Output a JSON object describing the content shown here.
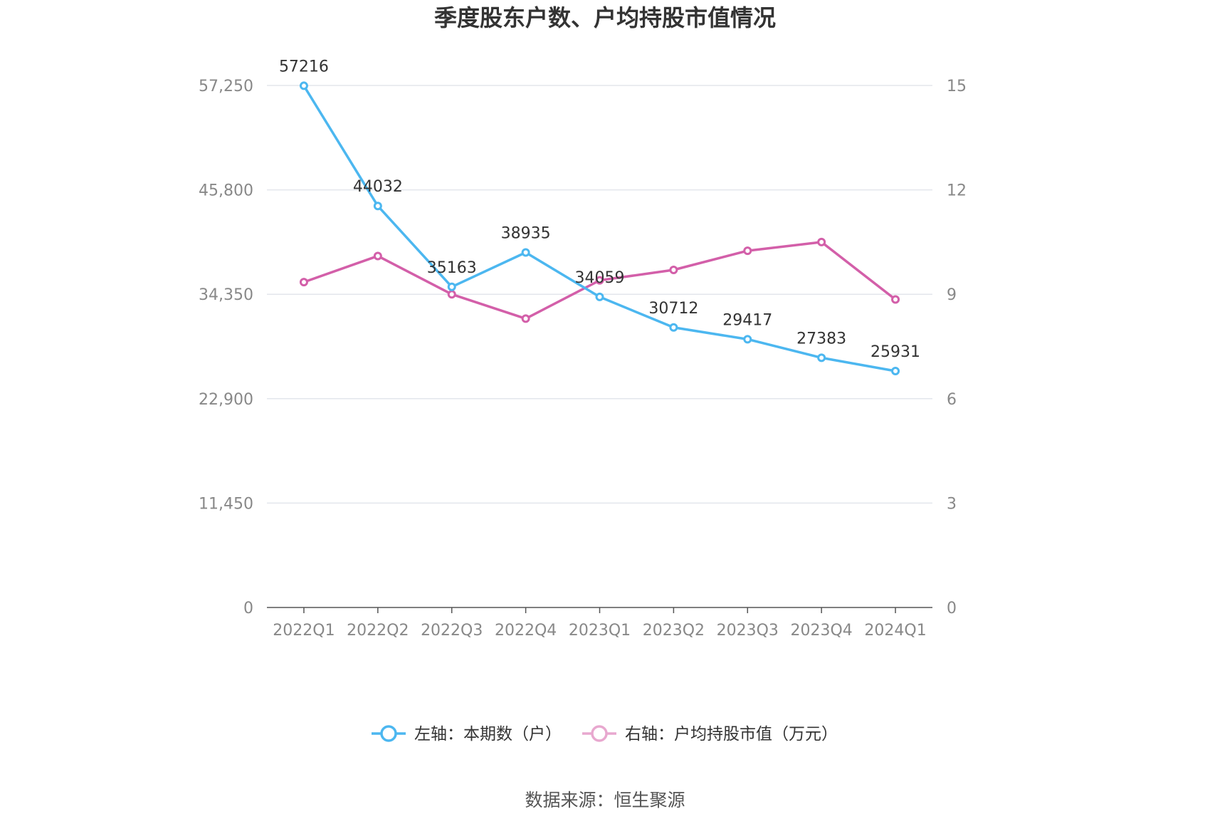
{
  "title": "季度股东户数、户均持股市值情况",
  "source": "数据来源：恒生聚源",
  "colors": {
    "left_series": "#4cb7f0",
    "right_series": "#d35fa9",
    "grid": "#e3e6ec",
    "axis": "#555555"
  },
  "chart_data": {
    "type": "line",
    "title": "季度股东户数、户均持股市值情况",
    "categories": [
      "2022Q1",
      "2022Q2",
      "2022Q3",
      "2022Q4",
      "2023Q1",
      "2023Q2",
      "2023Q3",
      "2023Q4",
      "2024Q1"
    ],
    "y_left": {
      "min": 0,
      "max": 57250,
      "ticks": [
        "0",
        "11,450",
        "22,900",
        "34,350",
        "45,800",
        "57,250"
      ]
    },
    "y_right": {
      "min": 0,
      "max": 15,
      "ticks": [
        "0",
        "3",
        "6",
        "9",
        "12",
        "15"
      ]
    },
    "grid": true,
    "legend_position": "bottom",
    "series": [
      {
        "name": "左轴：本期数（户）",
        "axis": "left",
        "color": "#4cb7f0",
        "values": [
          57216,
          44032,
          35163,
          38935,
          34059,
          30712,
          29417,
          27383,
          25931
        ],
        "labels": [
          "57216",
          "44032",
          "35163",
          "38935",
          "34059",
          "30712",
          "29417",
          "27383",
          "25931"
        ]
      },
      {
        "name": "右轴：户均持股市值（万元）",
        "axis": "right",
        "color": "#d35fa9",
        "values": [
          9.35,
          10.1,
          9.0,
          8.3,
          9.4,
          9.7,
          10.25,
          10.5,
          8.85
        ]
      }
    ]
  }
}
